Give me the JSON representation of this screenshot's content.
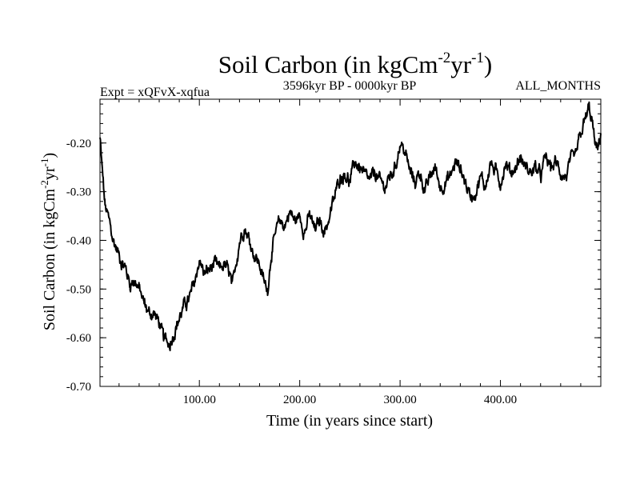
{
  "chart_data": {
    "type": "line",
    "title": {
      "prefix": "Soil Carbon (in kgCm",
      "sup1": "-2",
      "mid": "yr",
      "sup2": "-1",
      "suffix": ")"
    },
    "subtitle_left": "Expt = xQFvX-xqfua",
    "subtitle_center": "3596kyr BP - 0000kyr BP",
    "subtitle_right": "ALL_MONTHS",
    "xlabel": "Time (in years since start)",
    "ylabel": {
      "prefix": "Soil Carbon (in kgCm",
      "sup1": "-2",
      "mid": "yr",
      "sup2": "-1",
      "suffix": ")"
    },
    "xlim": [
      1,
      500
    ],
    "ylim": [
      -0.7,
      -0.11
    ],
    "x_ticks": [
      100,
      200,
      300,
      400
    ],
    "x_tick_labels": [
      "100.00",
      "200.00",
      "300.00",
      "400.00"
    ],
    "y_ticks": [
      -0.7,
      -0.6,
      -0.5,
      -0.4,
      -0.3,
      -0.2
    ],
    "y_tick_labels": [
      "-0.70",
      "-0.60",
      "-0.50",
      "-0.40",
      "-0.30",
      "-0.20"
    ],
    "series": [
      {
        "name": "Soil Carbon",
        "color": "#000000",
        "x": [
          1,
          3,
          6,
          10,
          14,
          18,
          22,
          27,
          31,
          35,
          40,
          45,
          50,
          55,
          60,
          64,
          68,
          71,
          74,
          78,
          82,
          86,
          90,
          95,
          100,
          105,
          110,
          115,
          120,
          125,
          130,
          133,
          137,
          140,
          145,
          150,
          155,
          160,
          165,
          168,
          172,
          176,
          180,
          185,
          190,
          195,
          200,
          205,
          210,
          215,
          220,
          225,
          230,
          235,
          240,
          245,
          250,
          255,
          260,
          265,
          270,
          275,
          280,
          285,
          290,
          295,
          300,
          305,
          310,
          315,
          320,
          325,
          330,
          335,
          340,
          345,
          350,
          355,
          360,
          365,
          370,
          375,
          380,
          385,
          390,
          395,
          400,
          405,
          410,
          415,
          420,
          425,
          430,
          435,
          440,
          445,
          450,
          455,
          460,
          465,
          470,
          475,
          478,
          482,
          485,
          488,
          491,
          494,
          497,
          500
        ],
        "y": [
          -0.19,
          -0.25,
          -0.33,
          -0.36,
          -0.4,
          -0.42,
          -0.44,
          -0.46,
          -0.49,
          -0.48,
          -0.5,
          -0.53,
          -0.55,
          -0.55,
          -0.57,
          -0.6,
          -0.61,
          -0.61,
          -0.59,
          -0.57,
          -0.55,
          -0.53,
          -0.52,
          -0.49,
          -0.44,
          -0.47,
          -0.46,
          -0.45,
          -0.46,
          -0.45,
          -0.47,
          -0.5,
          -0.44,
          -0.4,
          -0.37,
          -0.4,
          -0.43,
          -0.45,
          -0.49,
          -0.5,
          -0.42,
          -0.39,
          -0.36,
          -0.37,
          -0.34,
          -0.36,
          -0.35,
          -0.38,
          -0.35,
          -0.38,
          -0.36,
          -0.38,
          -0.35,
          -0.31,
          -0.27,
          -0.26,
          -0.28,
          -0.24,
          -0.25,
          -0.27,
          -0.28,
          -0.26,
          -0.28,
          -0.29,
          -0.27,
          -0.25,
          -0.2,
          -0.22,
          -0.26,
          -0.28,
          -0.26,
          -0.3,
          -0.27,
          -0.25,
          -0.29,
          -0.28,
          -0.27,
          -0.24,
          -0.25,
          -0.28,
          -0.31,
          -0.3,
          -0.27,
          -0.29,
          -0.24,
          -0.26,
          -0.28,
          -0.24,
          -0.26,
          -0.25,
          -0.23,
          -0.25,
          -0.26,
          -0.25,
          -0.27,
          -0.23,
          -0.25,
          -0.24,
          -0.26,
          -0.27,
          -0.24,
          -0.23,
          -0.2,
          -0.17,
          -0.15,
          -0.13,
          -0.15,
          -0.2,
          -0.22,
          -0.18
        ]
      }
    ]
  }
}
